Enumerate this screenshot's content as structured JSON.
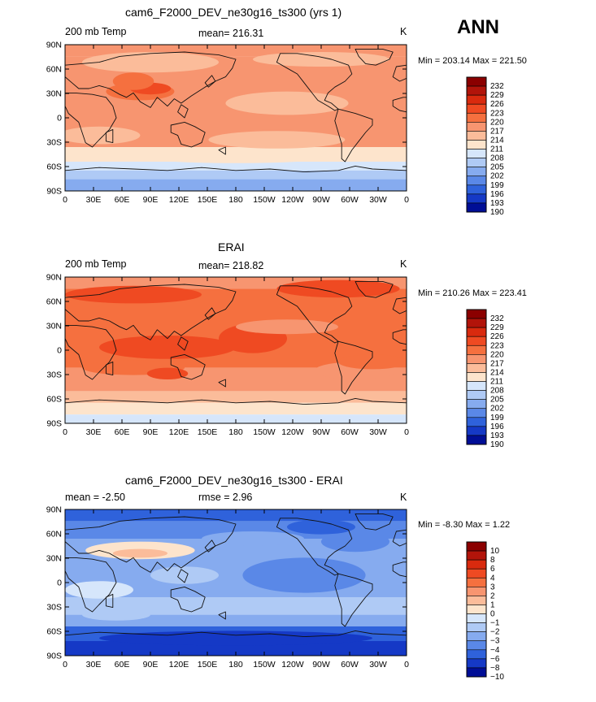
{
  "season": "ANN",
  "lat_ticks": [
    "90N",
    "60N",
    "30N",
    "0",
    "30S",
    "60S",
    "90S"
  ],
  "lon_ticks": [
    "0",
    "30E",
    "60E",
    "90E",
    "120E",
    "150E",
    "180",
    "150W",
    "120W",
    "90W",
    "60W",
    "30W",
    "0"
  ],
  "panels": [
    {
      "title": "cam6_F2000_DEV_ne30g16_ts300 (yrs 1)",
      "left": "200 mb Temp",
      "center": "mean= 216.31",
      "right": "K",
      "minmax": "Min = 203.14 Max = 221.50",
      "levels": [
        "232",
        "229",
        "226",
        "223",
        "220",
        "217",
        "214",
        "211",
        "208",
        "205",
        "202",
        "199",
        "196",
        "193",
        "190"
      ]
    },
    {
      "title": "ERAI",
      "left": "200 mb Temp",
      "center": "mean= 218.82",
      "right": "K",
      "minmax": "Min = 210.26 Max = 223.41",
      "levels": [
        "232",
        "229",
        "226",
        "223",
        "220",
        "217",
        "214",
        "211",
        "208",
        "205",
        "202",
        "199",
        "196",
        "193",
        "190"
      ]
    },
    {
      "title": "cam6_F2000_DEV_ne30g16_ts300 - ERAI",
      "left": "mean =    -2.50",
      "center": "rmse =     2.96",
      "right": "K",
      "minmax": "Min =   -8.30 Max =    1.22",
      "levels": [
        "10",
        "8",
        "6",
        "4",
        "3",
        "2",
        "1",
        "0",
        "−1",
        "−2",
        "−3",
        "−4",
        "−6",
        "−8",
        "−10"
      ]
    }
  ],
  "palette": [
    "#8b0000",
    "#b2140a",
    "#d92a0e",
    "#ef4a22",
    "#f5703f",
    "#f79570",
    "#fbbc9a",
    "#fde4cc",
    "#d6e6fb",
    "#afcaf5",
    "#86abef",
    "#5a88e7",
    "#2f62db",
    "#1539c6",
    "#000e96"
  ]
}
